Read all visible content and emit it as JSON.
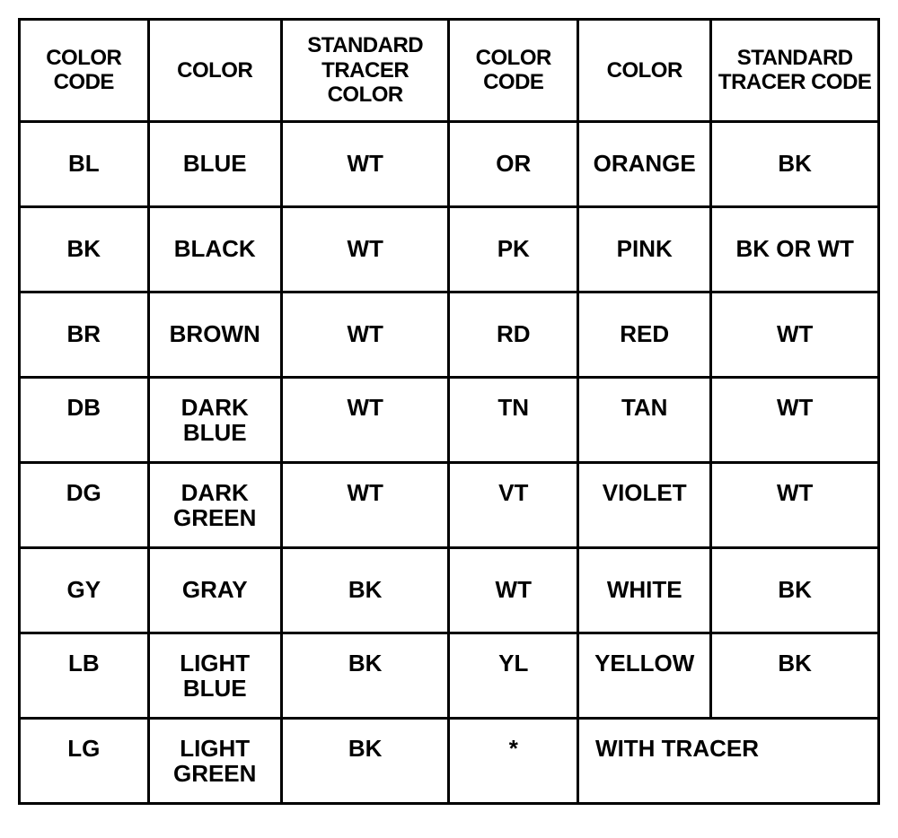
{
  "table": {
    "type": "table",
    "background_color": "#ffffff",
    "border_color": "#000000",
    "border_width": 3,
    "text_color": "#000000",
    "header_fontsize": 24,
    "cell_fontsize": 26,
    "header_font_weight": "bold",
    "cell_font_weight": "bold",
    "column_widths_pct": [
      15,
      15.5,
      19.5,
      15,
      15.5,
      19.5
    ],
    "columns": [
      "COLOR CODE",
      "COLOR",
      "STANDARD TRACER COLOR",
      "COLOR CODE",
      "COLOR",
      "STANDARD TRACER CODE"
    ],
    "rows": [
      [
        "BL",
        "BLUE",
        "WT",
        "OR",
        "ORANGE",
        "BK"
      ],
      [
        "BK",
        "BLACK",
        "WT",
        "PK",
        "PINK",
        "BK OR WT"
      ],
      [
        "BR",
        "BROWN",
        "WT",
        "RD",
        "RED",
        "WT"
      ],
      [
        "DB",
        "DARK BLUE",
        "WT",
        "TN",
        "TAN",
        "WT"
      ],
      [
        "DG",
        "DARK GREEN",
        "WT",
        "VT",
        "VIOLET",
        "WT"
      ],
      [
        "GY",
        "GRAY",
        "BK",
        "WT",
        "WHITE",
        "BK"
      ],
      [
        "LB",
        "LIGHT BLUE",
        "BK",
        "YL",
        "YELLOW",
        "BK"
      ]
    ],
    "last_row": {
      "cells": [
        "LG",
        "LIGHT GREEN",
        "BK",
        "*"
      ],
      "merged_label": "WITH TRACER"
    }
  }
}
